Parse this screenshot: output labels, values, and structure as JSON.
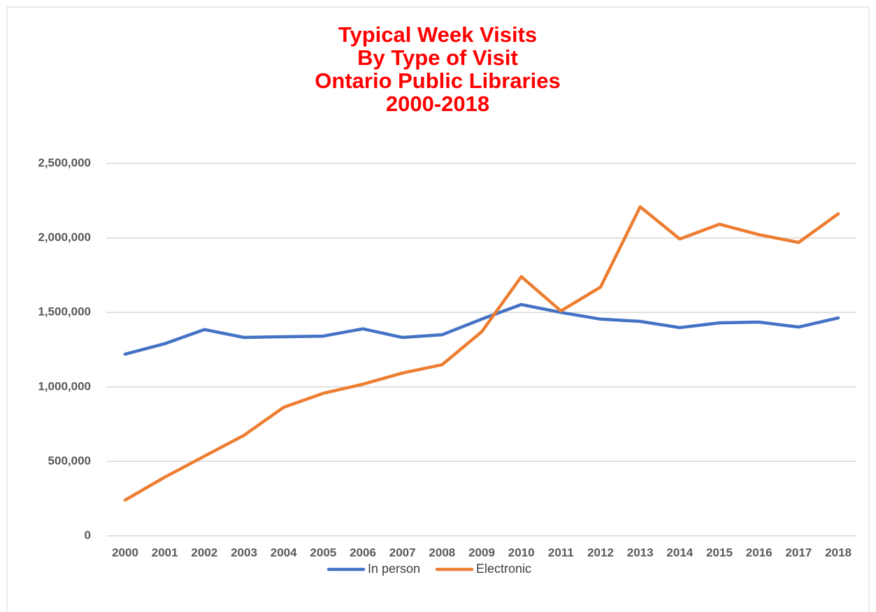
{
  "chart_data": {
    "type": "line",
    "title": [
      "Typical Week Visits",
      "By Type of Visit",
      "Ontario Public Libraries",
      "2000-2018"
    ],
    "categories": [
      "2000",
      "2001",
      "2002",
      "2003",
      "2004",
      "2005",
      "2006",
      "2007",
      "2008",
      "2009",
      "2010",
      "2011",
      "2012",
      "2013",
      "2014",
      "2015",
      "2016",
      "2017",
      "2018"
    ],
    "series": [
      {
        "name": "In person",
        "color": "#4472c4",
        "values": [
          1220000,
          1290000,
          1385000,
          1332000,
          1337000,
          1341000,
          1390000,
          1332000,
          1350000,
          1455000,
          1553000,
          1500000,
          1455000,
          1440000,
          1398000,
          1430000,
          1435000,
          1402000,
          1463000
        ]
      },
      {
        "name": "Electronic",
        "color": "#ed7d31",
        "values": [
          240000,
          394000,
          535000,
          675000,
          863000,
          957000,
          1018000,
          1093000,
          1149000,
          1370000,
          1740000,
          1510000,
          1670000,
          2209000,
          1993000,
          2092000,
          2022000,
          1970000,
          2162000
        ]
      }
    ],
    "ylim": [
      0,
      2500000
    ],
    "yticks": [
      0,
      {
        "value": 500000,
        "label": "500,000"
      },
      {
        "value": 1000000,
        "label": "1,000,000"
      },
      {
        "value": 1500000,
        "label": "1,500,000"
      },
      {
        "value": 2000000,
        "label": "2,000,000"
      },
      {
        "value": 2500000,
        "label": "2,500,000"
      }
    ],
    "grid": true,
    "legend": "bottom"
  }
}
